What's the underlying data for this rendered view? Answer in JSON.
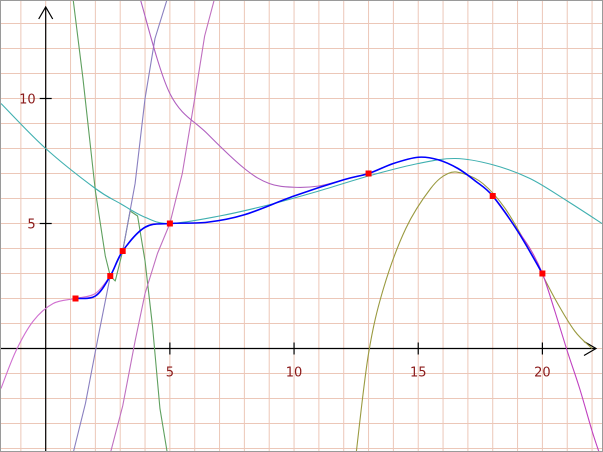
{
  "chart_data": {
    "type": "line",
    "xlim": [
      -1.8,
      22.4
    ],
    "ylim": [
      -4.1,
      13.9
    ],
    "grid": true,
    "grid_step": 1,
    "x_ticks": [
      {
        "value": 5,
        "label": "5"
      },
      {
        "value": 10,
        "label": "10"
      },
      {
        "value": 15,
        "label": "15"
      },
      {
        "value": 20,
        "label": "20"
      }
    ],
    "y_ticks": [
      {
        "value": 5,
        "label": "5"
      },
      {
        "value": 10,
        "label": "10"
      }
    ],
    "points": [
      {
        "x": 1.2,
        "y": 2.0
      },
      {
        "x": 2.6,
        "y": 2.9
      },
      {
        "x": 3.1,
        "y": 3.9
      },
      {
        "x": 5.0,
        "y": 5.0
      },
      {
        "x": 13.0,
        "y": 7.0
      },
      {
        "x": 18.0,
        "y": 6.1
      },
      {
        "x": 20.0,
        "y": 3.0
      }
    ],
    "series": [
      {
        "color": "#0000ff",
        "x": [
          1.2,
          2.0,
          2.6,
          3.1,
          4.0,
          5.0,
          6.5,
          8.0,
          10.0,
          12.0,
          13.0,
          14.0,
          15.0,
          15.8,
          16.6,
          17.3,
          18.0,
          19.0,
          20.0
        ],
        "y": [
          2.0,
          2.1,
          2.9,
          3.9,
          4.85,
          5.0,
          5.05,
          5.35,
          6.1,
          6.75,
          7.0,
          7.4,
          7.65,
          7.55,
          7.2,
          6.7,
          6.1,
          4.7,
          3.0
        ]
      },
      {
        "color": "#d070d0",
        "x": [
          -1.8,
          -1.2,
          -0.5,
          0.3,
          1.2,
          2.0,
          2.6
        ],
        "y": [
          -1.6,
          -0.1,
          1.1,
          1.8,
          2.0,
          2.2,
          2.9
        ]
      },
      {
        "color": "#5fa05f",
        "x": [
          1.1,
          1.5,
          2.0,
          2.4,
          2.6,
          2.8,
          3.1,
          3.4,
          3.7,
          4.0,
          4.3,
          4.6,
          4.9
        ],
        "y": [
          14.0,
          10.8,
          6.3,
          3.7,
          2.9,
          2.7,
          3.9,
          5.5,
          5.3,
          3.5,
          0.9,
          -2.4,
          -4.2
        ],
        "smooth": false
      },
      {
        "color": "#8a80c0",
        "x": [
          1.1,
          1.6,
          2.1,
          2.6,
          3.1,
          3.6,
          4.0,
          4.4,
          4.9
        ],
        "y": [
          -4.2,
          -2.2,
          0.4,
          2.9,
          3.9,
          6.6,
          10.0,
          12.4,
          14.0
        ],
        "smooth": false
      },
      {
        "color": "#c070c0",
        "x": [
          2.6,
          3.1,
          3.6,
          4.0,
          4.5,
          5.0,
          5.5,
          6.0,
          6.4,
          6.8
        ],
        "y": [
          -4.2,
          -2.3,
          0.3,
          2.2,
          3.8,
          5.0,
          7.0,
          10.0,
          12.5,
          14.0
        ],
        "smooth": false
      },
      {
        "color": "#b060c0",
        "x": [
          3.8,
          5.0,
          6.5,
          8.0,
          9.0,
          10.0,
          11.0,
          12.0,
          13.0
        ],
        "y": [
          14.0,
          10.2,
          8.6,
          7.2,
          6.6,
          6.45,
          6.5,
          6.75,
          7.0
        ]
      },
      {
        "color": "#40b0b0",
        "x": [
          -1.8,
          0.0,
          2.0,
          3.0,
          4.0,
          5.0,
          7.0,
          9.0,
          11.0,
          13.0,
          15.0,
          16.5,
          18.0,
          19.5,
          21.0,
          22.4
        ],
        "y": [
          9.8,
          8.0,
          6.4,
          5.8,
          5.25,
          5.0,
          5.3,
          5.75,
          6.3,
          6.9,
          7.4,
          7.6,
          7.35,
          6.8,
          5.9,
          5.0
        ]
      },
      {
        "color": "#9a9a40",
        "x": [
          12.5,
          13.0,
          13.6,
          14.5,
          15.5,
          16.2,
          16.8,
          17.6,
          18.5,
          19.5,
          20.5,
          21.3,
          22.0
        ],
        "y": [
          -4.2,
          -0.2,
          2.4,
          4.8,
          6.4,
          7.0,
          7.0,
          6.6,
          5.6,
          3.9,
          2.0,
          0.7,
          0.0
        ]
      },
      {
        "color": "#c040c0",
        "x": [
          18.0,
          18.8,
          19.5,
          20.0,
          20.5,
          21.0,
          21.5,
          22.0,
          22.3
        ],
        "y": [
          6.1,
          5.0,
          4.0,
          3.0,
          1.5,
          -0.1,
          -1.6,
          -3.3,
          -4.2
        ]
      }
    ]
  }
}
